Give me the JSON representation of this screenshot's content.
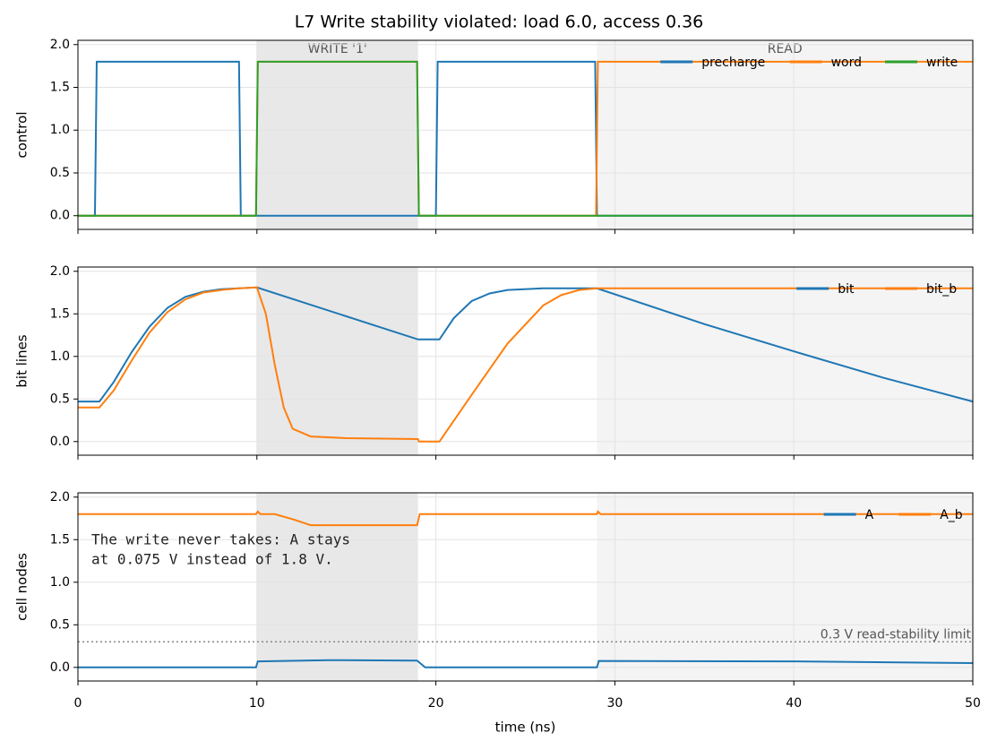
{
  "title": "L7  Write stability violated: load 6.0, access 0.36",
  "chart_data": [
    {
      "type": "line",
      "ylabel": "control",
      "xlim": [
        0,
        50
      ],
      "xticks": [
        0,
        10,
        20,
        30,
        40,
        50
      ],
      "ylim": [
        -0.16,
        2.05
      ],
      "yticks": [
        {
          "value": 0,
          "label": "0.0"
        },
        0.5,
        {
          "value": 1,
          "label": "1.0"
        },
        1.5,
        {
          "value": 2,
          "label": "2.0"
        }
      ],
      "grid": true,
      "legend": "upper right",
      "phases": [
        {
          "label": "WRITE '1'",
          "start": 10,
          "end": 19,
          "color": "#e8e8e8"
        },
        {
          "label": "READ",
          "start": 29,
          "end": 50,
          "color": "#f4f4f4"
        }
      ],
      "series": [
        {
          "name": "precharge",
          "color": "#1f77b4",
          "x": [
            0,
            0.95,
            1.05,
            9.0,
            9.1,
            20.0,
            20.1,
            28.9,
            29.0,
            50
          ],
          "values": [
            0,
            0,
            1.8,
            1.8,
            0,
            0,
            1.8,
            1.8,
            0,
            0
          ]
        },
        {
          "name": "word",
          "color": "#ff7f0e",
          "x": [
            0,
            9.95,
            10.05,
            18.95,
            19.05,
            28.95,
            29.05,
            50
          ],
          "values": [
            0,
            0,
            1.8,
            1.8,
            0,
            0,
            1.8,
            1.8
          ]
        },
        {
          "name": "write",
          "color": "#2ca02c",
          "x": [
            0,
            9.95,
            10.05,
            18.95,
            19.05,
            50
          ],
          "values": [
            0,
            0,
            1.8,
            1.8,
            0,
            0
          ]
        }
      ]
    },
    {
      "type": "line",
      "ylabel": "bit lines",
      "xlim": [
        0,
        50
      ],
      "xticks": [
        0,
        10,
        20,
        30,
        40,
        50
      ],
      "ylim": [
        -0.16,
        2.05
      ],
      "yticks": [
        {
          "value": 0,
          "label": "0.0"
        },
        0.5,
        {
          "value": 1,
          "label": "1.0"
        },
        1.5,
        {
          "value": 2,
          "label": "2.0"
        }
      ],
      "grid": true,
      "legend": "upper right",
      "series": [
        {
          "name": "bit",
          "color": "#1f77b4",
          "x": [
            0,
            1.2,
            2,
            3,
            4,
            5,
            6,
            7,
            8,
            9,
            10,
            19,
            20.2,
            21,
            22,
            23,
            24,
            26,
            29,
            35,
            40,
            45,
            50
          ],
          "values": [
            0.47,
            0.47,
            0.7,
            1.05,
            1.35,
            1.57,
            1.7,
            1.76,
            1.79,
            1.8,
            1.81,
            1.2,
            1.2,
            1.45,
            1.65,
            1.74,
            1.78,
            1.8,
            1.8,
            1.38,
            1.06,
            0.75,
            0.47
          ]
        },
        {
          "name": "bit_b",
          "color": "#ff7f0e",
          "x": [
            0,
            1.2,
            2,
            3,
            4,
            5,
            6,
            7,
            8,
            9,
            10,
            10.5,
            11,
            11.5,
            12,
            13,
            15,
            19,
            19.05,
            20.2,
            22,
            24,
            26,
            27,
            28,
            29,
            50
          ],
          "values": [
            0.4,
            0.4,
            0.6,
            0.95,
            1.28,
            1.52,
            1.67,
            1.75,
            1.78,
            1.8,
            1.81,
            1.5,
            0.9,
            0.4,
            0.15,
            0.06,
            0.04,
            0.03,
            0,
            0,
            0.55,
            1.15,
            1.6,
            1.72,
            1.78,
            1.8,
            1.8
          ]
        }
      ]
    },
    {
      "type": "line",
      "ylabel": "cell nodes",
      "xlabel": "time (ns)",
      "xlim": [
        0,
        50
      ],
      "xticks": [
        0,
        10,
        20,
        30,
        40,
        50
      ],
      "ylim": [
        -0.16,
        2.05
      ],
      "yticks": [
        {
          "value": 0,
          "label": "0.0"
        },
        0.5,
        {
          "value": 1,
          "label": "1.0"
        },
        1.5,
        {
          "value": 2,
          "label": "2.0"
        }
      ],
      "grid": true,
      "legend": "upper right",
      "annotation": [
        "The write never takes: A stays",
        "at 0.075 V instead of 1.8 V."
      ],
      "hline": {
        "value": 0.3,
        "label": "0.3 V read-stability limit"
      },
      "series": [
        {
          "name": "A",
          "color": "#1f77b4",
          "x": [
            0,
            9.95,
            10.05,
            14,
            18.95,
            19.4,
            29,
            29.1,
            40,
            50
          ],
          "values": [
            0,
            0,
            0.07,
            0.085,
            0.08,
            0,
            0,
            0.075,
            0.07,
            0.05
          ]
        },
        {
          "name": "A_b",
          "color": "#ff7f0e",
          "x": [
            0,
            9.95,
            10.05,
            10.2,
            11,
            12,
            13,
            18.95,
            19.1,
            29,
            29.05,
            29.2,
            50
          ],
          "values": [
            1.8,
            1.8,
            1.83,
            1.8,
            1.8,
            1.74,
            1.67,
            1.67,
            1.8,
            1.8,
            1.83,
            1.8,
            1.8
          ]
        }
      ]
    }
  ]
}
